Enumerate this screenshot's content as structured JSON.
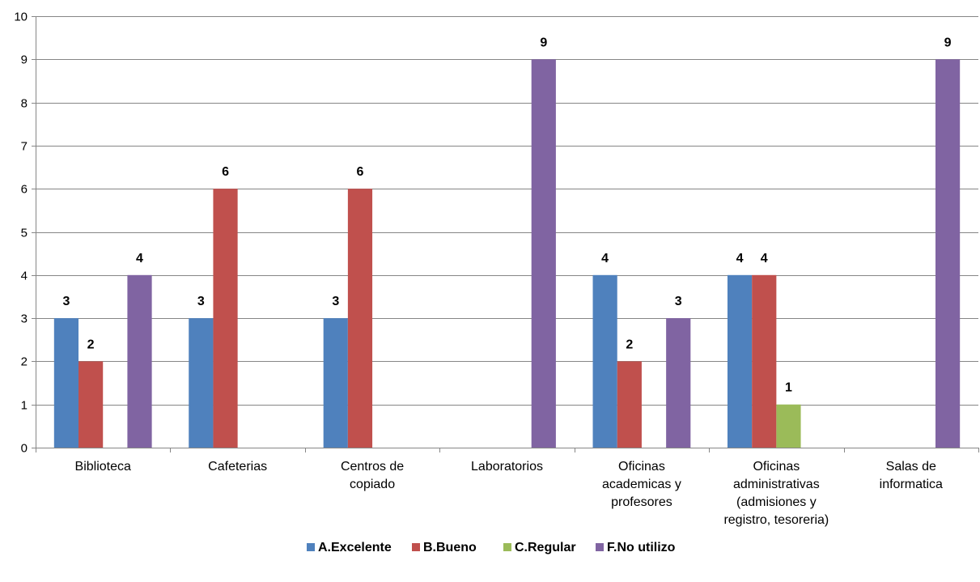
{
  "chart_data": {
    "type": "bar",
    "categories": [
      [
        "Biblioteca"
      ],
      [
        "Cafeterias"
      ],
      [
        "Centros de",
        "copiado"
      ],
      [
        "Laboratorios"
      ],
      [
        "Oficinas",
        "academicas y",
        "profesores"
      ],
      [
        "Oficinas",
        "administrativas",
        "(admisiones y",
        "registro, tesoreria)"
      ],
      [
        "Salas de",
        "informatica"
      ]
    ],
    "series": [
      {
        "name": "A.Excelente",
        "color": "#4F81BD",
        "values": [
          3,
          3,
          3,
          null,
          4,
          4,
          null
        ]
      },
      {
        "name": "B.Bueno",
        "color": "#C0504D",
        "values": [
          2,
          6,
          6,
          null,
          2,
          4,
          null
        ]
      },
      {
        "name": "C.Regular",
        "color": "#9BBB59",
        "values": [
          null,
          null,
          null,
          null,
          null,
          1,
          null
        ]
      },
      {
        "name": "F.No utilizo",
        "color": "#8064A2",
        "values": [
          4,
          null,
          null,
          9,
          3,
          null,
          9
        ]
      }
    ],
    "ylim": [
      0,
      10
    ],
    "yticks": [
      0,
      1,
      2,
      3,
      4,
      5,
      6,
      7,
      8,
      9,
      10
    ],
    "grid": true,
    "legend": "bottom",
    "data_labels": true
  }
}
